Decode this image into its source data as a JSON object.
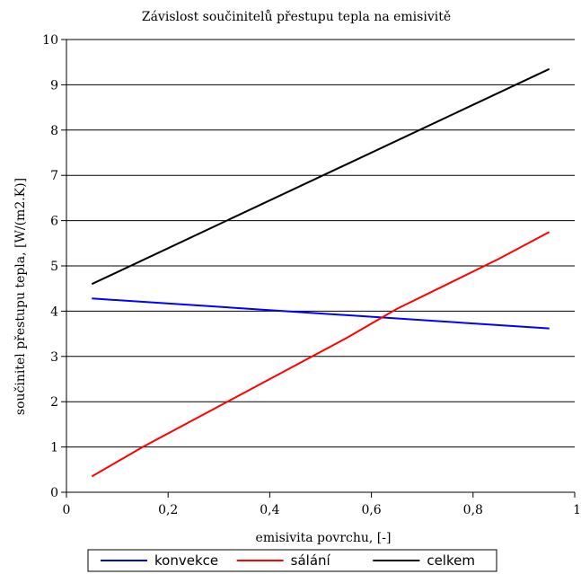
{
  "chart_data": {
    "type": "line",
    "title": "Závislost součinitelů přestupu tepla na emisivitě",
    "xlabel": "emisivita povrchu, [-]",
    "ylabel": "součinitel přestupu tepla, [W/(m2.K)]",
    "xlim": [
      0,
      1
    ],
    "ylim": [
      0,
      10
    ],
    "xticks": [
      "0",
      "0,2",
      "0,4",
      "0,6",
      "0,8",
      "1"
    ],
    "yticks": [
      "0",
      "1",
      "2",
      "3",
      "4",
      "5",
      "6",
      "7",
      "8",
      "9",
      "10"
    ],
    "grid": "horizontal",
    "legend": "bottom",
    "series": [
      {
        "name": "konvekce",
        "color": "#0000ff",
        "x": [
          0.05,
          0.95
        ],
        "y": [
          4.28,
          3.62
        ]
      },
      {
        "name": "sálání",
        "color": "#ff0000",
        "x": [
          0.05,
          0.15,
          0.25,
          0.35,
          0.45,
          0.55,
          0.65,
          0.75,
          0.85,
          0.95
        ],
        "y": [
          0.35,
          1.0,
          1.6,
          2.2,
          2.8,
          3.4,
          4.05,
          4.6,
          5.15,
          5.75
        ]
      },
      {
        "name": "celkem",
        "color": "#000000",
        "x": [
          0.05,
          0.95
        ],
        "y": [
          4.6,
          9.35
        ]
      }
    ]
  }
}
